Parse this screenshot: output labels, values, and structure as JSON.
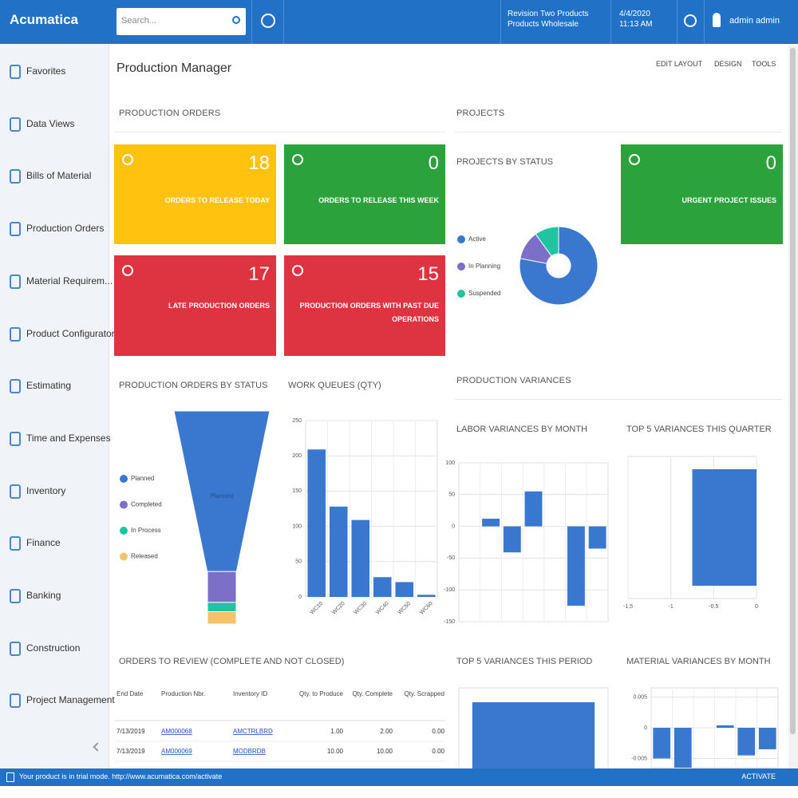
{
  "header": {
    "logo": "Acumatica",
    "search_placeholder": "Search...",
    "branch": [
      "Revision Two Products",
      "Products Wholesale"
    ],
    "date": [
      "4/4/2020",
      "11:13 AM"
    ],
    "user": "admin admin"
  },
  "sidebar": {
    "items": [
      "Favorites",
      "Data Views",
      "Bills of Material",
      "Production Orders",
      "Material Requirem...",
      "Product Configurator",
      "Estimating",
      "Time and Expenses",
      "Inventory",
      "Finance",
      "Banking",
      "Construction",
      "Project Management"
    ]
  },
  "page": {
    "title": "Production Manager",
    "actions": [
      "EDIT LAYOUT",
      "DESIGN",
      "TOOLS"
    ]
  },
  "production_orders": {
    "heading": "PRODUCTION ORDERS",
    "tiles": [
      {
        "value": 18,
        "label": "ORDERS TO RELEASE TODAY",
        "color": "#ffc20e"
      },
      {
        "value": 0,
        "label": "ORDERS TO RELEASE THIS WEEK",
        "color": "#2ba23c"
      },
      {
        "value": 17,
        "label": "LATE PRODUCTION ORDERS",
        "color": "#de3341"
      },
      {
        "value": 15,
        "label": "PRODUCTION ORDERS WITH PAST DUE OPERATIONS",
        "color": "#de3341"
      }
    ]
  },
  "projects": {
    "heading": "PROJECTS",
    "status_chart": {
      "type": "pie",
      "title": "PROJECTS BY STATUS",
      "categories": [
        "Active",
        "In Planning",
        "Suspended"
      ],
      "values": [
        78,
        12,
        10
      ],
      "colors": [
        "#3a78d0",
        "#7b6fc7",
        "#21c4a0"
      ]
    },
    "tile": {
      "value": 0,
      "label": "URGENT PROJECT ISSUES",
      "color": "#2ba23c"
    }
  },
  "orders_by_status": {
    "type": "funnel",
    "title": "PRODUCTION ORDERS BY STATUS",
    "categories": [
      "Planned",
      "Completed",
      "In Process",
      "Released"
    ],
    "values": [
      52,
      10,
      3,
      4
    ],
    "colors": [
      "#3a78d0",
      "#7b6fc7",
      "#21c4a0",
      "#f5c26b"
    ]
  },
  "work_queues": {
    "type": "bar",
    "title": "WORK QUEUES (QTY)",
    "categories": [
      "WC10",
      "WC20",
      "WC30",
      "WC40",
      "WC50",
      "WC60"
    ],
    "values": [
      209,
      128,
      109,
      28,
      21,
      3
    ],
    "ylim": [
      0,
      250
    ],
    "yticks": [
      0,
      50,
      100,
      150,
      200,
      250
    ],
    "color": "#3a78d0"
  },
  "variances": {
    "heading": "PRODUCTION VARIANCES",
    "labor": {
      "type": "bar",
      "title": "LABOR VARIANCES BY MONTH",
      "categories": [
        null,
        null,
        null,
        null,
        null,
        null,
        null
      ],
      "values": [
        0,
        12,
        -41,
        55,
        0,
        -125,
        -35
      ],
      "ylim": [
        -150,
        100
      ],
      "yticks": [
        -150,
        -100,
        -50,
        0,
        50,
        100
      ],
      "color": "#3a78d0"
    },
    "top_quarter": {
      "type": "hbar",
      "title": "TOP 5 VARIANCES THIS QUARTER",
      "categories": [
        null
      ],
      "values": [
        -0.75
      ],
      "xlim": [
        -1.5,
        0
      ],
      "xticks": [
        -1.5,
        -1,
        -0.5,
        0
      ],
      "color": "#3a78d0"
    },
    "top_period": {
      "type": "bar",
      "title": "TOP 5 VARIANCES THIS PERIOD",
      "categories": [
        null
      ],
      "values": [
        1
      ],
      "ylim": [
        0,
        1.15
      ],
      "color": "#3a78d0"
    },
    "material": {
      "type": "bar",
      "title": "MATERIAL VARIANCES BY MONTH",
      "categories": [
        null,
        null,
        null,
        null,
        null,
        null
      ],
      "values": [
        -0.005,
        -0.0065,
        0,
        0.0004,
        -0.0045,
        -0.0035
      ],
      "ylim": [
        -0.0065,
        0.0065
      ],
      "yticks": [
        -0.005,
        0,
        0.005
      ],
      "color": "#3a78d0"
    }
  },
  "review_table": {
    "title": "ORDERS TO REVIEW (COMPLETE AND NOT CLOSED)",
    "columns": [
      "End Date",
      "Production Nbr.",
      "Inventory ID",
      "Qty. to Produce",
      "Qty. Complete",
      "Qty. Scrapped"
    ],
    "rows": [
      [
        "7/13/2019",
        "AM000068",
        "AMCTRLBRD",
        "1.00",
        "2.00",
        "0.00"
      ],
      [
        "7/13/2019",
        "AM000069",
        "MODBRDB",
        "10.00",
        "10.00",
        "0.00"
      ]
    ]
  },
  "status_bar": {
    "message": "Your product is in trial mode. http://www.acumatica.com/activate",
    "action": "ACTIVATE"
  }
}
